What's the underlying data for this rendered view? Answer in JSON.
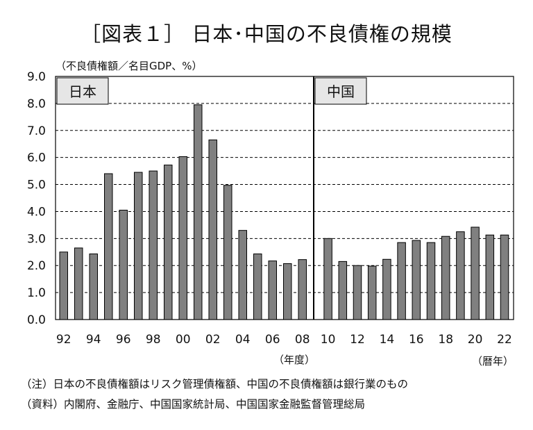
{
  "title": "［図表１］ 日本･中国の不良債権の規模",
  "unit_label": "（不良債権額／名目GDP、%）",
  "notes": [
    "（注）日本の不良債権額はリスク管理債権額、中国の不良債権額は銀行業のもの",
    "（資料）内閣府、金融庁、中国国家統計局、中国国家金融監督管理総局"
  ],
  "chart_data": {
    "type": "bar",
    "ylim": [
      0,
      9
    ],
    "y_ticks": [
      "0.0",
      "1.0",
      "2.0",
      "3.0",
      "4.0",
      "5.0",
      "6.0",
      "7.0",
      "8.0",
      "9.0"
    ],
    "grid": true,
    "bar_color": "#808080",
    "panels": [
      {
        "label": "日本",
        "axis_unit": "（年度）",
        "categories": [
          "92",
          "93",
          "94",
          "95",
          "96",
          "97",
          "98",
          "99",
          "00",
          "01",
          "02",
          "03",
          "04",
          "05",
          "06",
          "07",
          "08"
        ],
        "values": [
          2.5,
          2.65,
          2.43,
          5.4,
          4.05,
          5.45,
          5.5,
          5.72,
          6.03,
          7.95,
          6.65,
          4.97,
          3.3,
          2.43,
          2.17,
          2.07,
          2.22
        ],
        "tick_labels": [
          "92",
          "",
          "94",
          "",
          "96",
          "",
          "98",
          "",
          "00",
          "",
          "02",
          "",
          "04",
          "",
          "06",
          "",
          "08"
        ]
      },
      {
        "label": "中国",
        "axis_unit": "（暦年）",
        "categories": [
          "10",
          "11",
          "12",
          "13",
          "14",
          "15",
          "16",
          "17",
          "18",
          "19",
          "20",
          "21",
          "22"
        ],
        "values": [
          3.0,
          2.15,
          2.0,
          1.98,
          2.23,
          2.85,
          2.93,
          2.85,
          3.08,
          3.25,
          3.42,
          3.13,
          3.13
        ],
        "tick_labels": [
          "10",
          "",
          "12",
          "",
          "14",
          "",
          "16",
          "",
          "18",
          "",
          "20",
          "",
          "22"
        ]
      }
    ]
  }
}
